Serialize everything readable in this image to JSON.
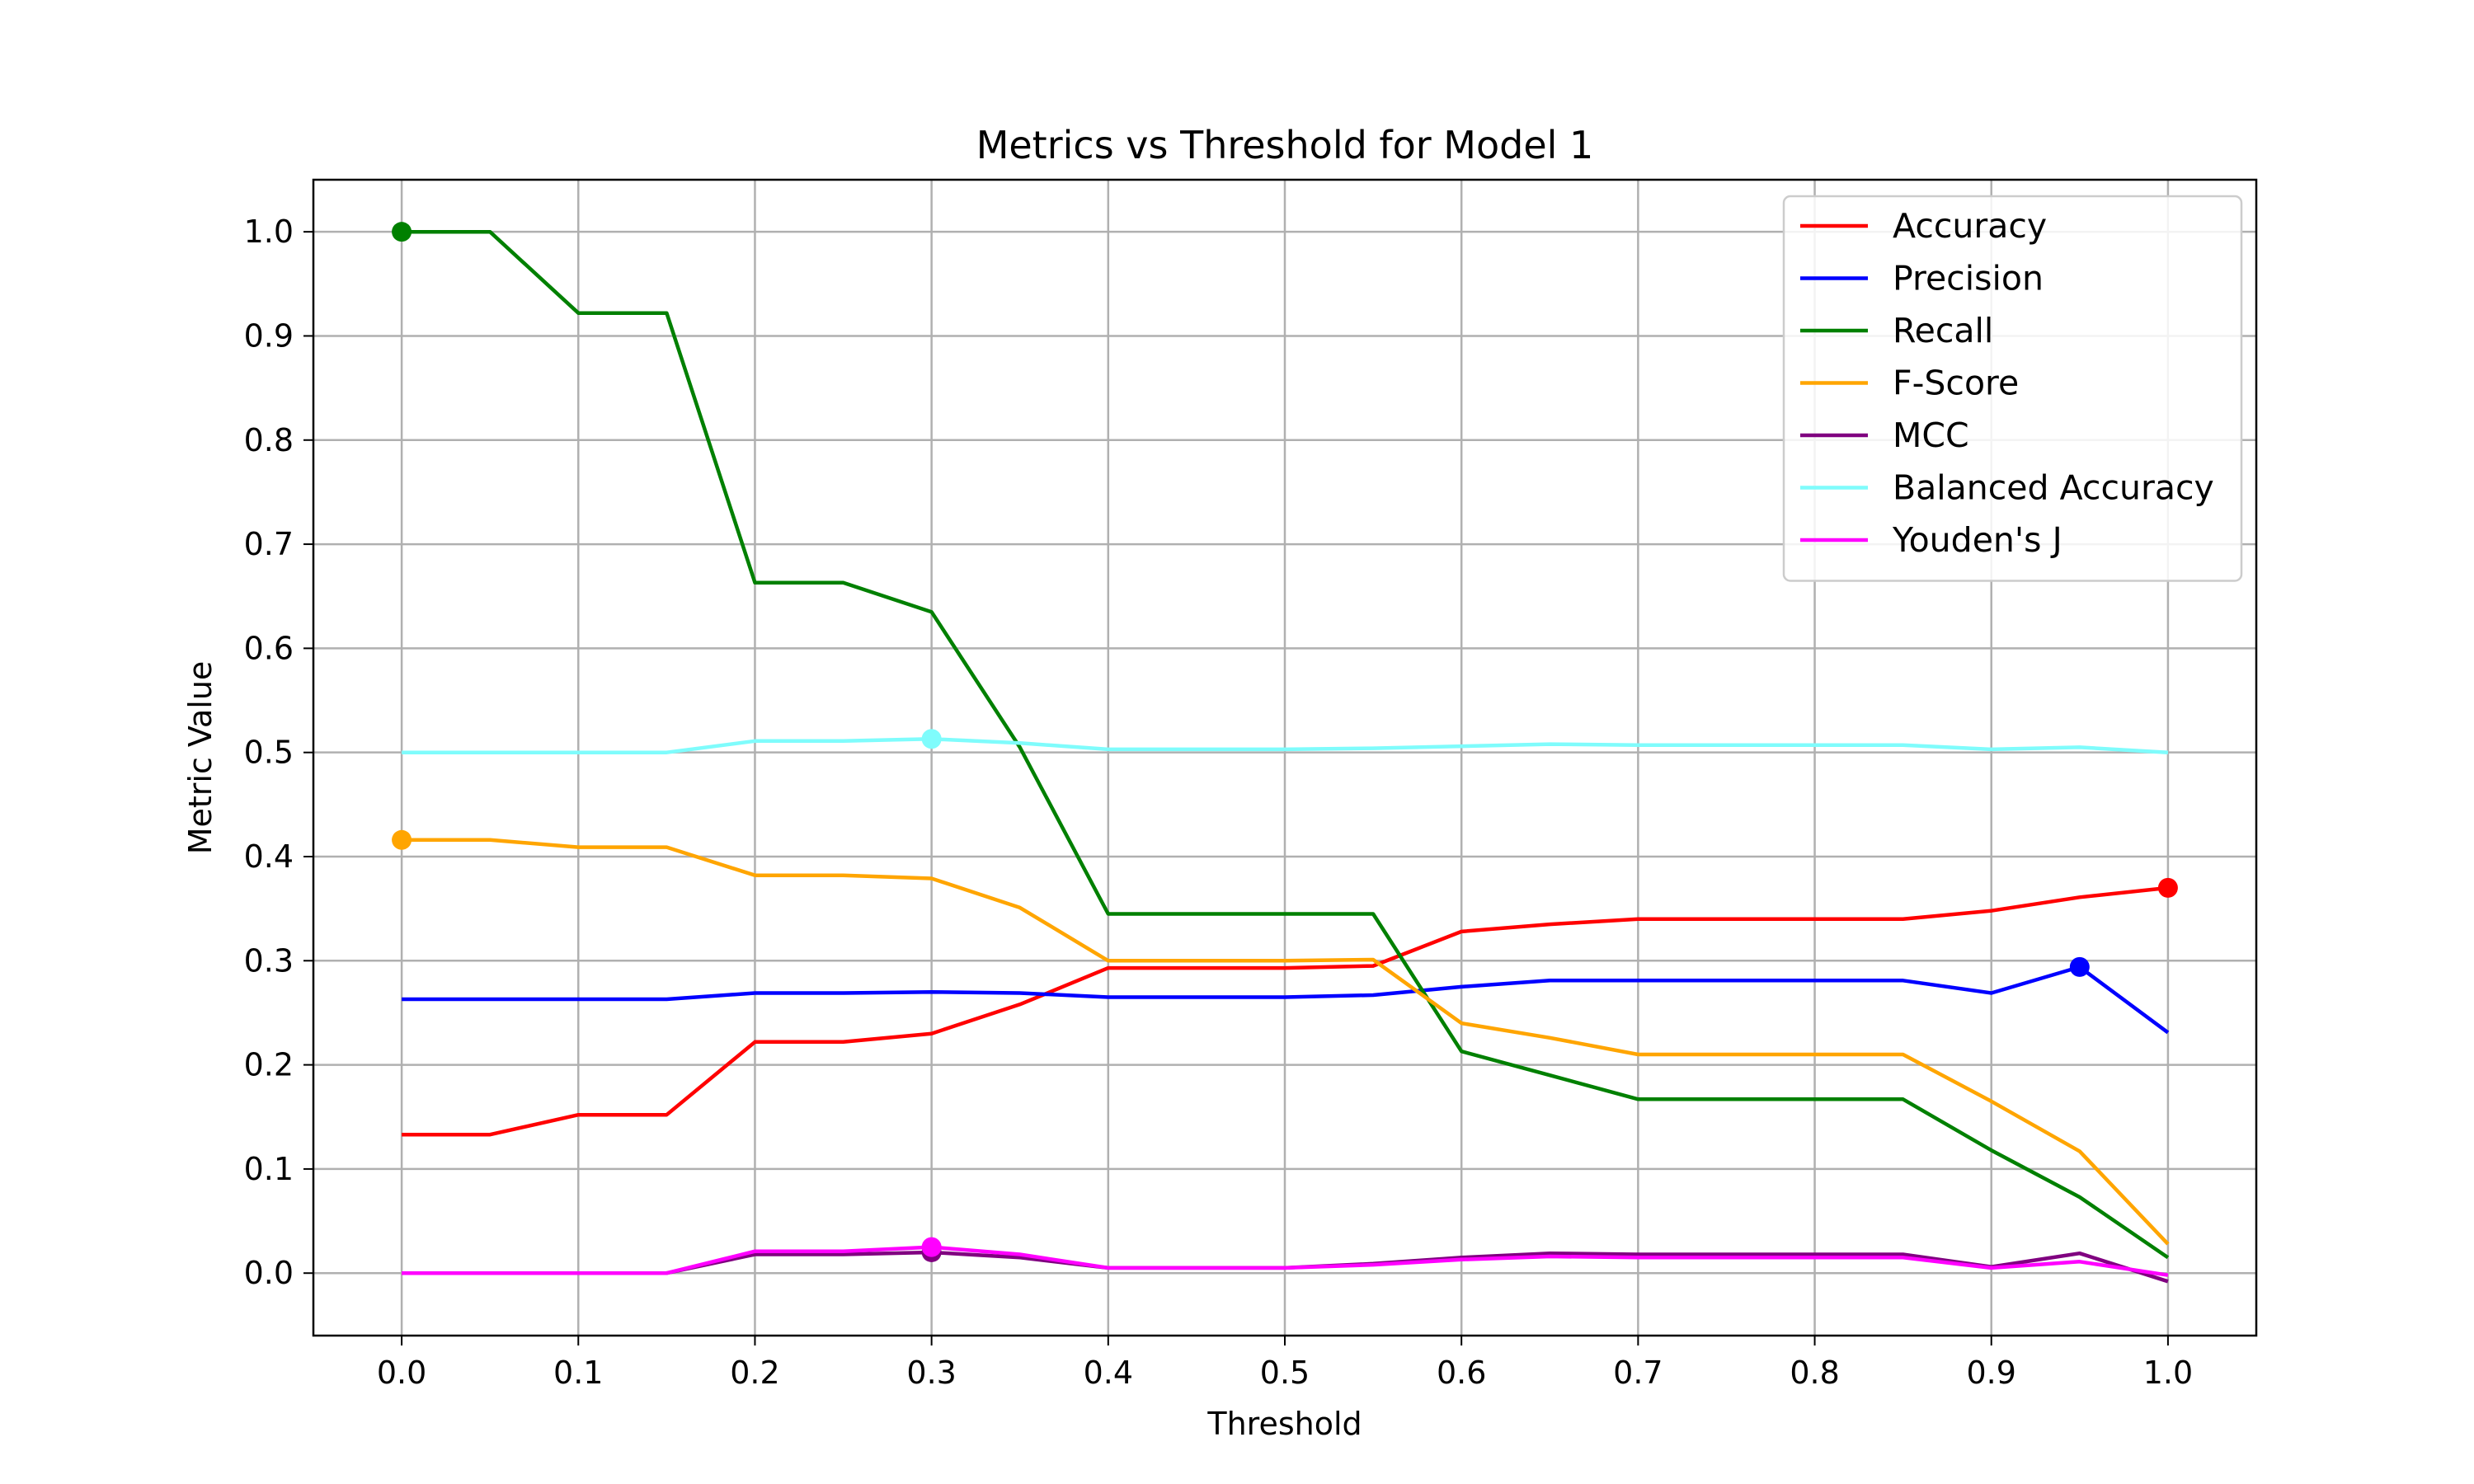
{
  "chart_data": {
    "type": "line",
    "title": "Metrics vs Threshold for Model 1",
    "xlabel": "Threshold",
    "ylabel": "Metric Value",
    "xlim": [
      -0.05,
      1.05
    ],
    "ylim": [
      -0.06,
      1.05
    ],
    "x": [
      0.0,
      0.05,
      0.1,
      0.15,
      0.2,
      0.25,
      0.3,
      0.35,
      0.4,
      0.45,
      0.5,
      0.55,
      0.6,
      0.65,
      0.7,
      0.75,
      0.8,
      0.85,
      0.9,
      0.95,
      1.0
    ],
    "x_ticks": [
      "0.0",
      "0.1",
      "0.2",
      "0.3",
      "0.4",
      "0.5",
      "0.6",
      "0.7",
      "0.8",
      "0.9",
      "1.0"
    ],
    "y_ticks": [
      "0.0",
      "0.1",
      "0.2",
      "0.3",
      "0.4",
      "0.5",
      "0.6",
      "0.7",
      "0.8",
      "0.9",
      "1.0"
    ],
    "grid": true,
    "legend_position": "top-right",
    "series": [
      {
        "name": "Accuracy",
        "color": "#ff0000",
        "values": [
          0.133,
          0.133,
          0.152,
          0.152,
          0.222,
          0.222,
          0.23,
          0.258,
          0.293,
          0.293,
          0.293,
          0.295,
          0.328,
          0.335,
          0.34,
          0.34,
          0.34,
          0.34,
          0.348,
          0.361,
          0.37
        ],
        "marker_x": 1.0
      },
      {
        "name": "Precision",
        "color": "#0000ff",
        "values": [
          0.263,
          0.263,
          0.263,
          0.263,
          0.269,
          0.269,
          0.27,
          0.269,
          0.265,
          0.265,
          0.265,
          0.267,
          0.275,
          0.281,
          0.281,
          0.281,
          0.281,
          0.281,
          0.269,
          0.294,
          0.231
        ],
        "marker_x": 0.95
      },
      {
        "name": "Recall",
        "color": "#008000",
        "values": [
          1.0,
          1.0,
          0.922,
          0.922,
          0.663,
          0.663,
          0.635,
          0.505,
          0.345,
          0.345,
          0.345,
          0.345,
          0.213,
          0.19,
          0.167,
          0.167,
          0.167,
          0.167,
          0.118,
          0.073,
          0.015
        ],
        "marker_x": 0.0
      },
      {
        "name": "F-Score",
        "color": "#ffa500",
        "values": [
          0.416,
          0.416,
          0.409,
          0.409,
          0.382,
          0.382,
          0.379,
          0.351,
          0.3,
          0.3,
          0.3,
          0.301,
          0.24,
          0.226,
          0.21,
          0.21,
          0.21,
          0.21,
          0.165,
          0.117,
          0.028
        ],
        "marker_x": 0.0
      },
      {
        "name": "MCC",
        "color": "#800080",
        "values": [
          0.0,
          0.0,
          0.0,
          0.0,
          0.018,
          0.018,
          0.02,
          0.015,
          0.005,
          0.005,
          0.005,
          0.009,
          0.015,
          0.019,
          0.018,
          0.018,
          0.018,
          0.018,
          0.006,
          0.019,
          -0.008
        ],
        "marker_x": 0.3
      },
      {
        "name": "Balanced Accuracy",
        "color": "#7ffcfc",
        "values": [
          0.5,
          0.5,
          0.5,
          0.5,
          0.511,
          0.511,
          0.513,
          0.509,
          0.503,
          0.503,
          0.503,
          0.504,
          0.506,
          0.508,
          0.507,
          0.507,
          0.507,
          0.507,
          0.503,
          0.505,
          0.5
        ],
        "marker_x": 0.3
      },
      {
        "name": "Youden's J",
        "color": "#ff00ff",
        "values": [
          0.0,
          0.0,
          0.0,
          0.0,
          0.021,
          0.021,
          0.025,
          0.018,
          0.005,
          0.005,
          0.005,
          0.008,
          0.013,
          0.016,
          0.015,
          0.015,
          0.015,
          0.015,
          0.005,
          0.011,
          -0.002
        ],
        "marker_x": 0.3
      }
    ]
  }
}
